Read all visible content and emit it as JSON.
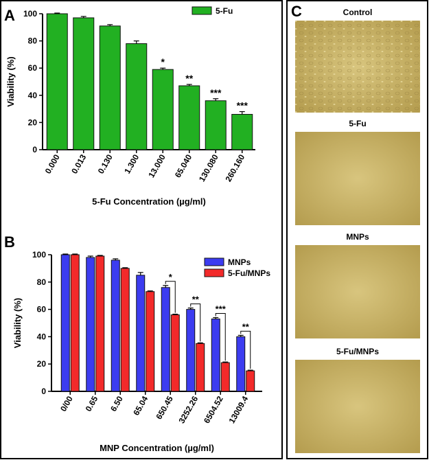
{
  "panel_labels": [
    "A",
    "B",
    "C"
  ],
  "chart_data": [
    {
      "type": "bar",
      "xlabel": "5-Fu Concentration (µg/ml)",
      "ylabel": "Viability (%)",
      "categories": [
        "0.000",
        "0.013",
        "0.130",
        "1.300",
        "13.000",
        "65.040",
        "130.080",
        "260.160"
      ],
      "series": [
        {
          "name": "5-Fu",
          "color": "#22b022",
          "values": [
            100,
            97,
            91,
            78,
            59,
            47,
            36,
            26
          ],
          "errors": [
            0.5,
            1,
            1,
            2,
            1,
            1,
            1.5,
            2
          ]
        }
      ],
      "annotations": [
        null,
        null,
        null,
        null,
        "*",
        "**",
        "***",
        "***"
      ],
      "ylim": [
        0,
        100
      ],
      "yticks": [
        0,
        20,
        40,
        60,
        80,
        100
      ]
    },
    {
      "type": "bar",
      "xlabel": "MNP Concentration (µg/ml)",
      "ylabel": "Viability (%)",
      "categories": [
        "0/00",
        "0.65",
        "6.50",
        "65.04",
        "650.45",
        "3252.26",
        "6504.52",
        "13009.4"
      ],
      "series": [
        {
          "name": "MNPs",
          "color": "#3c3cf0",
          "values": [
            100,
            98,
            96,
            85,
            76,
            60,
            53,
            40
          ],
          "errors": [
            0.5,
            1,
            1,
            2,
            1.5,
            1,
            1,
            1
          ]
        },
        {
          "name": "5-Fu/MNPs",
          "color": "#f22a2a",
          "values": [
            100,
            99,
            90,
            73,
            56,
            35,
            21,
            15
          ],
          "errors": [
            0.5,
            0.5,
            0.5,
            0.5,
            0.5,
            0.5,
            0.5,
            0.5
          ]
        }
      ],
      "annotations": [
        null,
        null,
        null,
        null,
        "*",
        "**",
        "***",
        "**"
      ],
      "ylim": [
        0,
        100
      ],
      "yticks": [
        0,
        20,
        40,
        60,
        80,
        100
      ]
    }
  ],
  "images": [
    {
      "label": "Control"
    },
    {
      "label": "5-Fu"
    },
    {
      "label": "MNPs"
    },
    {
      "label": "5-Fu/MNPs"
    }
  ]
}
